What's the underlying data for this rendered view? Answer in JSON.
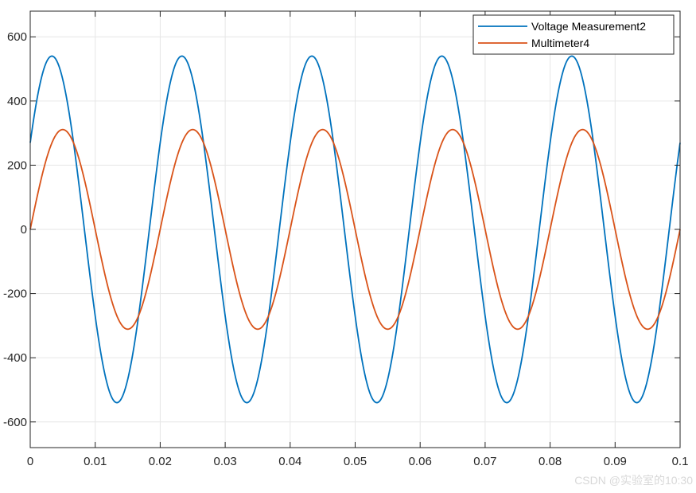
{
  "chart_data": {
    "type": "line",
    "title": "",
    "xlabel": "",
    "ylabel": "",
    "xlim": [
      0,
      0.1
    ],
    "ylim": [
      -680,
      680
    ],
    "x_ticks": [
      0,
      0.01,
      0.02,
      0.03,
      0.04,
      0.05,
      0.06,
      0.07,
      0.08,
      0.09,
      0.1
    ],
    "x_tick_labels": [
      "0",
      "0.01",
      "0.02",
      "0.03",
      "0.04",
      "0.05",
      "0.06",
      "0.07",
      "0.08",
      "0.09",
      "0.1"
    ],
    "y_ticks": [
      -600,
      -400,
      -200,
      0,
      200,
      400,
      600
    ],
    "y_tick_labels": [
      "-600",
      "-400",
      "-200",
      "0",
      "200",
      "400",
      "600"
    ],
    "grid": true,
    "legend_position": "top-right",
    "series": [
      {
        "name": "Voltage Measurement2",
        "color": "#0072BD",
        "description": "50 Hz sinusoid, amplitude 540, phase +30 deg",
        "frequency_hz": 50,
        "amplitude": 540,
        "phase_deg": 30
      },
      {
        "name": "Multimeter4",
        "color": "#D95319",
        "description": "50 Hz sinusoid, amplitude 311, phase 0 deg",
        "frequency_hz": 50,
        "amplitude": 311,
        "phase_deg": 0
      }
    ]
  },
  "watermark": "CSDN @实验室的10:30"
}
